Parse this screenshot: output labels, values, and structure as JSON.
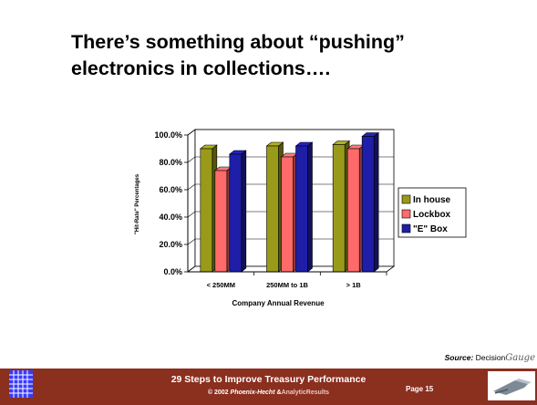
{
  "slide": {
    "title_line1": "There’s something about “pushing”",
    "title_line2": "electronics in collections…."
  },
  "chart_data": {
    "type": "bar",
    "categories": [
      "< 250MM",
      "250MM to 1B",
      "> 1B"
    ],
    "series": [
      {
        "name": "In house",
        "values": [
          90,
          92,
          93
        ],
        "color": "#9a9a1a"
      },
      {
        "name": "Lockbox",
        "values": [
          74,
          84,
          90
        ],
        "color": "#ff6a6a"
      },
      {
        "name": "\"E\" Box",
        "values": [
          86,
          92,
          99
        ],
        "color": "#1e1ea8"
      }
    ],
    "xlabel": "Company Annual Revenue",
    "ylabel": "\"Hit-Rate\" Percentages",
    "yticks": [
      "0.0%",
      "20.0%",
      "40.0%",
      "60.0%",
      "80.0%",
      "100.0%"
    ],
    "ylim": [
      0,
      100
    ],
    "grid": true,
    "legend_position": "right",
    "style": "3d-bar"
  },
  "source": {
    "label": "Source:",
    "brand_main": "Decision",
    "brand_italic": "Gauge"
  },
  "footer": {
    "title": "29 Steps to Improve Treasury Performance",
    "copyright_prefix": "© 2002",
    "copyright_brand": "Phoenix-Hecht",
    "copyright_amp": "&",
    "copyright_partner": "AnalyticResults",
    "page_label": "Page 15"
  }
}
